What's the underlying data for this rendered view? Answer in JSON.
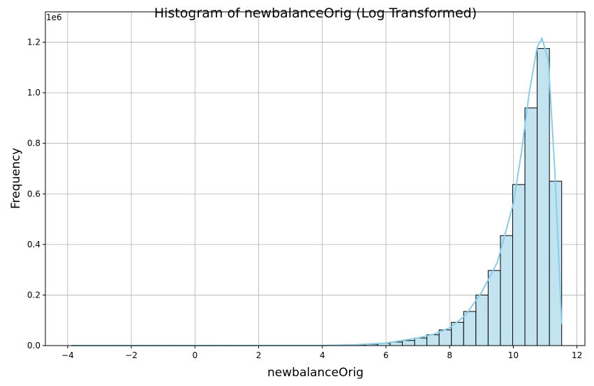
{
  "chart_data": {
    "type": "histogram",
    "title": "Histogram of newbalanceOrig (Log Transformed)",
    "x_label": "newbalanceOrig",
    "y_label": "Frequency",
    "y_offset_label": "1e6",
    "bins": [
      -3.88,
      -3.495,
      -3.11,
      -2.725,
      -2.34,
      -1.955,
      -1.57,
      -1.185,
      -0.8,
      -0.415,
      -0.03,
      0.355,
      0.74,
      1.125,
      1.51,
      1.895,
      2.28,
      2.665,
      3.05,
      3.435,
      3.82,
      4.205,
      4.59,
      4.975,
      5.36,
      5.745,
      6.13,
      6.515,
      6.9,
      7.285,
      7.67,
      8.055,
      8.44,
      8.825,
      9.21,
      9.595,
      9.98,
      10.365,
      10.75,
      11.135,
      11.52
    ],
    "counts": [
      1,
      0,
      0,
      0,
      1,
      2,
      3,
      5,
      8,
      12,
      20,
      30,
      45,
      70,
      100,
      150,
      220,
      330,
      480,
      700,
      1000,
      1400,
      2000,
      3000,
      5000,
      9000,
      14000,
      20000,
      30000,
      43000,
      62000,
      92000,
      135000,
      200000,
      297000,
      435000,
      637000,
      940000,
      1175000,
      650000
    ],
    "color": "#c2e4f0",
    "edge_color": "#000000",
    "kde": {
      "color": "#87ceeb",
      "x": [
        -3.88,
        0,
        4,
        5,
        6,
        7,
        7.5,
        8,
        8.5,
        9,
        9.5,
        10,
        10.25,
        10.5,
        10.75,
        10.9,
        11.1,
        11.3,
        11.52
      ],
      "y": [
        0,
        0,
        500,
        3000,
        10000,
        30000,
        45000,
        70000,
        120000,
        210000,
        330000,
        560000,
        760000,
        1000000,
        1180000,
        1215000,
        1130000,
        700000,
        85000
      ]
    },
    "xlim": [
      -4.7,
      12.25
    ],
    "ylim": [
      0,
      1320000
    ],
    "xticks": [
      {
        "value": -4,
        "label": "−4"
      },
      {
        "value": -2,
        "label": "−2"
      },
      0,
      2,
      4,
      6,
      8,
      10,
      12
    ],
    "yticks": [
      {
        "value": 0,
        "label": "0.0"
      },
      {
        "value": 200000,
        "label": "0.2"
      },
      {
        "value": 400000,
        "label": "0.4"
      },
      {
        "value": 600000,
        "label": "0.6"
      },
      {
        "value": 800000,
        "label": "0.8"
      },
      {
        "value": 1000000,
        "label": "1.0"
      },
      {
        "value": 1200000,
        "label": "1.2"
      }
    ],
    "grid": true
  }
}
